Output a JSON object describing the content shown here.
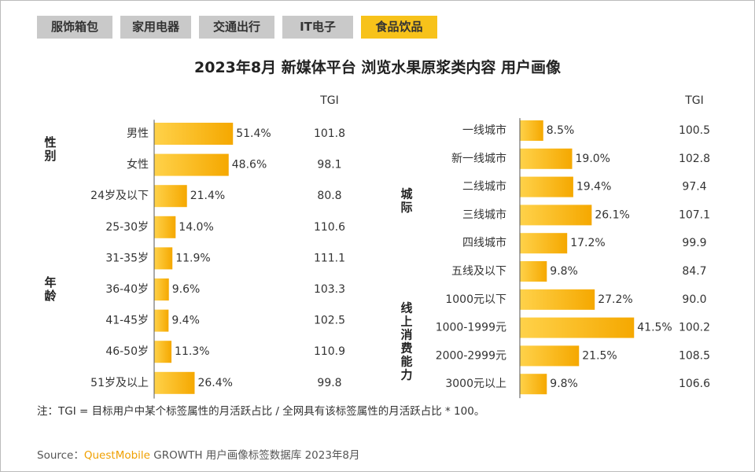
{
  "tabs": [
    {
      "label": "服饰箱包",
      "active": false
    },
    {
      "label": "家用电器",
      "active": false
    },
    {
      "label": "交通出行",
      "active": false
    },
    {
      "label": "IT电子",
      "active": false
    },
    {
      "label": "食品饮品",
      "active": true
    }
  ],
  "title": "2023年8月 新媒体平台 浏览水果原浆类内容 用户画像",
  "chart_data": [
    {
      "type": "bar",
      "color": "#f7b500",
      "tgi_header": "TGI",
      "groups": [
        {
          "label": "性别",
          "categories": [
            "男性",
            "女性"
          ],
          "values": [
            51.4,
            48.6
          ],
          "value_labels": [
            "51.4%",
            "48.6%"
          ],
          "tgi": [
            101.8,
            98.1
          ],
          "tgi_colors": [
            "#222",
            "#222"
          ]
        },
        {
          "label": "年龄",
          "categories": [
            "24岁及以下",
            "25-30岁",
            "31-35岁",
            "36-40岁",
            "41-45岁",
            "46-50岁",
            "51岁及以上"
          ],
          "values": [
            21.4,
            14.0,
            11.9,
            9.6,
            9.4,
            11.3,
            26.4
          ],
          "value_labels": [
            "21.4%",
            "14.0%",
            "11.9%",
            "9.6%",
            "9.4%",
            "11.3%",
            "26.4%"
          ],
          "tgi": [
            80.8,
            110.6,
            111.1,
            103.3,
            102.5,
            110.9,
            99.8
          ],
          "tgi_colors": [
            "#222",
            "#e02020",
            "#e02020",
            "#222",
            "#222",
            "#222",
            "#222"
          ]
        }
      ]
    },
    {
      "type": "bar",
      "color": "#f7b500",
      "tgi_header": "TGI",
      "groups": [
        {
          "label": "城际",
          "categories": [
            "一线城市",
            "新一线城市",
            "二线城市",
            "三线城市",
            "四线城市",
            "五线及以下"
          ],
          "values": [
            8.5,
            19.0,
            19.4,
            26.1,
            17.2,
            9.8
          ],
          "value_labels": [
            "8.5%",
            "19.0%",
            "19.4%",
            "26.1%",
            "17.2%",
            "9.8%"
          ],
          "tgi": [
            100.5,
            102.8,
            97.4,
            107.1,
            99.9,
            84.7
          ],
          "tgi_colors": [
            "#222",
            "#222",
            "#222",
            "#222",
            "#222",
            "#222"
          ]
        },
        {
          "label": "线上消费能力",
          "categories": [
            "1000元以下",
            "1000-1999元",
            "2000-2999元",
            "3000元以上"
          ],
          "values": [
            27.2,
            41.5,
            21.5,
            9.8
          ],
          "value_labels": [
            "27.2%",
            "41.5%",
            "21.5%",
            "9.8%"
          ],
          "tgi": [
            {
              "value": 90,
              "label": "90.0"
            },
            100.2,
            108.5,
            106.6
          ],
          "tgi_colors": [
            "#222",
            "#222",
            "#222",
            "#222"
          ]
        }
      ]
    }
  ],
  "footnote": "注：TGI = 目标用户中某个标签属性的月活跃占比 / 全网具有该标签属性的月活跃占比 * 100。",
  "source": {
    "prefix": "Source：",
    "brand": "QuestMobile",
    "text": "GROWTH 用户画像标签数据库 2023年8月"
  }
}
